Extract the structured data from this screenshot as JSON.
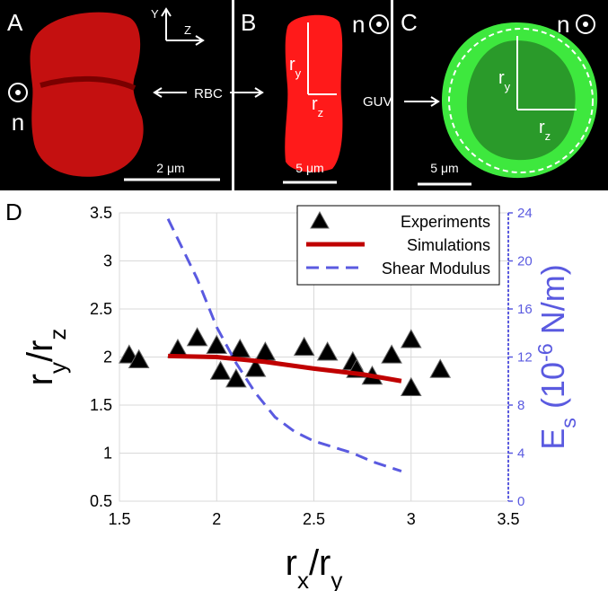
{
  "panels": [
    {
      "letter": "A",
      "n": "n",
      "label": "RBC",
      "scale": "2 μm",
      "axis_y": "Y",
      "axis_z": "Z"
    },
    {
      "letter": "B",
      "n": "n",
      "r_y": [
        {
          "text": "r"
        },
        {
          "text": "y",
          "sub": true
        }
      ],
      "r_z": [
        {
          "text": "r"
        },
        {
          "text": "z",
          "sub": true
        }
      ],
      "scale": "5 μm"
    },
    {
      "letter": "C",
      "n": "n",
      "label": "GUV",
      "r_y": [
        {
          "text": "r"
        },
        {
          "text": "y",
          "sub": true
        }
      ],
      "r_z": [
        {
          "text": "r"
        },
        {
          "text": "z",
          "sub": true
        }
      ],
      "scale": "5 μm"
    }
  ],
  "chart_data": {
    "type": "scatter",
    "panel_letter": "D",
    "x_label": [
      {
        "text": "r"
      },
      {
        "text": "x",
        "sub": true
      },
      {
        "text": "/r"
      },
      {
        "text": "y",
        "sub": true
      }
    ],
    "y_label": [
      {
        "text": "r"
      },
      {
        "text": "y",
        "sub": true
      },
      {
        "text": "/r"
      },
      {
        "text": "z",
        "sub": true
      }
    ],
    "y2_label": [
      {
        "text": "E"
      },
      {
        "text": "s",
        "sub": true
      },
      {
        "text": " (10"
      },
      {
        "text": "-6",
        "sup": true
      },
      {
        "text": " N/m)"
      }
    ],
    "y2_color": "#5a5ae0",
    "xlim": [
      1.5,
      3.5
    ],
    "xticks": [
      1.5,
      2,
      2.5,
      3,
      3.5
    ],
    "ylim": [
      0.5,
      3.5
    ],
    "yticks": [
      0.5,
      1,
      1.5,
      2,
      2.5,
      3,
      3.5
    ],
    "y2lim": [
      0,
      24
    ],
    "y2ticks": [
      0,
      4,
      8,
      12,
      16,
      20,
      24
    ],
    "grid": true,
    "legend": "top-right",
    "series": [
      {
        "name": "Experiments",
        "style": "marker",
        "color": "#000000",
        "x": [
          1.55,
          1.6,
          1.8,
          1.9,
          2.0,
          2.02,
          2.1,
          2.12,
          2.2,
          2.25,
          2.45,
          2.57,
          2.7,
          2.72,
          2.8,
          2.9,
          3.0,
          3.0,
          3.15
        ],
        "values": [
          2.02,
          1.97,
          2.08,
          2.2,
          2.12,
          1.85,
          1.77,
          2.08,
          1.88,
          2.05,
          2.1,
          2.05,
          1.95,
          1.87,
          1.8,
          2.02,
          2.18,
          1.68,
          1.87
        ]
      },
      {
        "name": "Simulations",
        "style": "solid",
        "color": "#c00000",
        "x": [
          1.75,
          2.0,
          2.25,
          2.5,
          2.75,
          2.95
        ],
        "values": [
          2.01,
          2.0,
          1.95,
          1.88,
          1.82,
          1.75
        ]
      },
      {
        "name": "Shear Modulus",
        "style": "dashed",
        "color": "#5a5ae0",
        "axis": "y2",
        "x": [
          1.75,
          1.9,
          2.0,
          2.1,
          2.2,
          2.3,
          2.4,
          2.5,
          2.6,
          2.7,
          2.8,
          2.95
        ],
        "values": [
          23.5,
          18.5,
          14.5,
          11.5,
          9,
          7,
          5.8,
          5,
          4.5,
          4,
          3.3,
          2.5
        ]
      }
    ]
  }
}
